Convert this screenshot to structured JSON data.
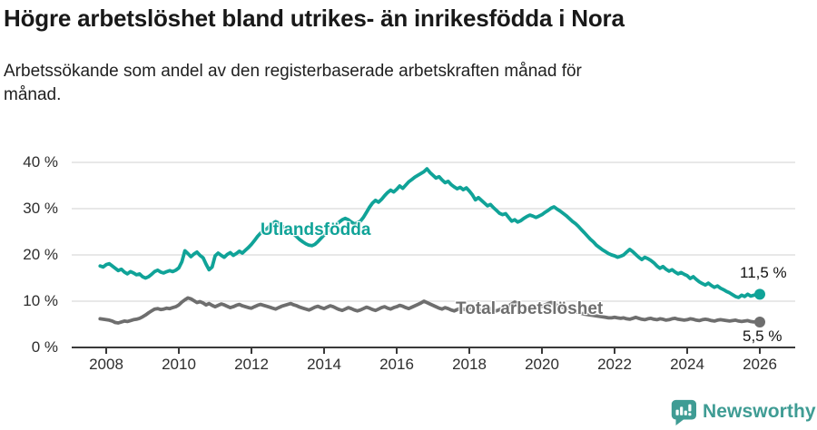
{
  "header": {
    "title": "Högre arbetslöshet bland utrikes- än inrikesfödda i Nora",
    "subtitle": "Arbetssökande som andel av den registerbaserade arbetskraften månad för månad."
  },
  "chart_data": {
    "type": "line",
    "title": "Högre arbetslöshet bland utrikes- än inrikesfödda i Nora",
    "ylabel": "",
    "xlabel": "",
    "grid": "horizontal",
    "ylim": [
      0,
      40
    ],
    "xlim_years": [
      2007.75,
      2026.6
    ],
    "y_axis": {
      "tick_labels": [
        "40 %",
        "30 %",
        "20 %",
        "10 %",
        "0 %"
      ],
      "tick_values": [
        40,
        30,
        20,
        10,
        0
      ]
    },
    "x_axis": {
      "ticks": [
        2008,
        2010,
        2012,
        2014,
        2016,
        2018,
        2020,
        2022,
        2024,
        2026
      ]
    },
    "frequency": "monthly",
    "series": [
      {
        "name": "Utlandsfödda",
        "color": "#10a398",
        "end_label": "11,5 %",
        "end_value": 11.5,
        "start": {
          "year": 2007,
          "month": 11
        },
        "values": [
          17.6,
          17.4,
          17.9,
          18.1,
          17.6,
          17.1,
          16.6,
          16.9,
          16.3,
          15.9,
          16.4,
          16.1,
          15.7,
          15.9,
          15.3,
          15.0,
          15.3,
          15.8,
          16.4,
          16.7,
          16.3,
          16.1,
          16.4,
          16.6,
          16.4,
          16.7,
          17.2,
          18.5,
          20.9,
          20.3,
          19.6,
          20.2,
          20.6,
          19.9,
          19.4,
          18.0,
          16.8,
          17.4,
          19.8,
          20.4,
          19.9,
          19.5,
          20.1,
          20.5,
          19.9,
          20.3,
          20.8,
          20.4,
          21.0,
          21.6,
          22.3,
          23.1,
          24.0,
          24.7,
          25.2,
          25.6,
          26.2,
          26.8,
          27.2,
          26.9,
          26.3,
          25.8,
          25.4,
          25.0,
          24.5,
          23.9,
          23.3,
          22.8,
          22.4,
          22.1,
          22.0,
          22.3,
          22.9,
          23.6,
          24.3,
          25.0,
          25.6,
          26.1,
          26.6,
          27.1,
          27.6,
          27.9,
          27.6,
          27.1,
          26.7,
          26.9,
          27.3,
          28.1,
          29.2,
          30.3,
          31.2,
          31.8,
          31.4,
          32.0,
          32.8,
          33.5,
          34.0,
          33.6,
          34.2,
          34.9,
          34.4,
          35.1,
          35.8,
          36.3,
          36.8,
          37.2,
          37.6,
          38.0,
          38.6,
          37.8,
          37.2,
          36.6,
          36.9,
          36.2,
          35.6,
          35.9,
          35.2,
          34.7,
          34.3,
          34.6,
          34.1,
          34.5,
          33.8,
          33.0,
          31.9,
          32.4,
          31.8,
          31.2,
          30.6,
          30.9,
          30.2,
          29.6,
          29.0,
          28.7,
          28.9,
          28.1,
          27.3,
          27.6,
          27.1,
          27.4,
          27.9,
          28.3,
          28.6,
          28.4,
          28.1,
          28.4,
          28.7,
          29.2,
          29.6,
          30.1,
          30.4,
          29.9,
          29.5,
          29.0,
          28.5,
          27.9,
          27.3,
          26.8,
          26.2,
          25.5,
          24.8,
          24.1,
          23.4,
          22.8,
          22.1,
          21.6,
          21.1,
          20.7,
          20.3,
          20.0,
          19.8,
          19.5,
          19.7,
          20.0,
          20.6,
          21.2,
          20.7,
          20.1,
          19.5,
          19.0,
          19.5,
          19.2,
          18.8,
          18.3,
          17.6,
          17.1,
          17.5,
          16.9,
          16.5,
          16.8,
          16.3,
          15.9,
          16.2,
          15.8,
          15.5,
          14.9,
          15.3,
          14.7,
          14.2,
          13.8,
          13.5,
          13.9,
          13.4,
          13.0,
          13.3,
          12.8,
          12.5,
          12.1,
          11.8,
          11.4,
          11.0,
          10.8,
          11.3,
          11.0,
          11.5,
          11.1,
          11.3,
          11.4,
          11.5
        ]
      },
      {
        "name": "Total arbetslöshet",
        "color": "#6e6e6e",
        "end_label": "5,5 %",
        "end_value": 5.5,
        "start": {
          "year": 2007,
          "month": 11
        },
        "values": [
          6.2,
          6.1,
          6.0,
          5.9,
          5.7,
          5.4,
          5.3,
          5.5,
          5.7,
          5.6,
          5.8,
          6.0,
          6.1,
          6.3,
          6.6,
          7.0,
          7.5,
          7.9,
          8.3,
          8.4,
          8.2,
          8.3,
          8.5,
          8.4,
          8.6,
          8.8,
          9.2,
          9.8,
          10.3,
          10.7,
          10.5,
          10.1,
          9.7,
          9.9,
          9.6,
          9.2,
          9.5,
          9.1,
          8.8,
          9.1,
          9.4,
          9.2,
          8.9,
          8.6,
          8.8,
          9.1,
          9.3,
          9.0,
          8.8,
          8.6,
          8.5,
          8.8,
          9.1,
          9.3,
          9.1,
          8.9,
          8.7,
          8.5,
          8.3,
          8.6,
          8.9,
          9.1,
          9.3,
          9.5,
          9.2,
          9.0,
          8.7,
          8.5,
          8.3,
          8.1,
          8.4,
          8.7,
          8.9,
          8.6,
          8.4,
          8.7,
          9.0,
          8.8,
          8.5,
          8.2,
          8.0,
          8.3,
          8.6,
          8.4,
          8.1,
          7.9,
          8.1,
          8.4,
          8.7,
          8.5,
          8.2,
          8.0,
          8.3,
          8.6,
          8.8,
          8.5,
          8.3,
          8.6,
          8.8,
          9.1,
          8.9,
          8.6,
          8.4,
          8.7,
          9.0,
          9.3,
          9.6,
          10.0,
          9.7,
          9.4,
          9.1,
          8.8,
          8.5,
          8.3,
          8.6,
          8.4,
          8.1,
          7.9,
          8.2,
          8.5,
          8.3,
          8.1,
          8.4,
          8.7,
          8.5,
          8.2,
          8.0,
          8.3,
          8.6,
          8.4,
          8.1,
          7.9,
          8.2,
          8.5,
          8.7,
          9.0,
          9.4,
          9.8,
          9.5,
          9.1,
          8.8,
          8.5,
          8.3,
          8.1,
          8.4,
          8.6,
          8.9,
          9.2,
          9.5,
          9.7,
          9.4,
          9.1,
          8.8,
          8.6,
          8.3,
          8.1,
          7.9,
          7.7,
          7.6,
          7.4,
          7.2,
          7.1,
          7.0,
          6.9,
          6.8,
          6.7,
          6.6,
          6.5,
          6.4,
          6.4,
          6.5,
          6.4,
          6.3,
          6.4,
          6.2,
          6.1,
          6.3,
          6.5,
          6.3,
          6.1,
          6.0,
          6.2,
          6.3,
          6.1,
          6.0,
          6.2,
          6.1,
          5.9,
          6.0,
          6.2,
          6.3,
          6.1,
          6.0,
          5.9,
          6.0,
          6.2,
          6.1,
          5.9,
          5.8,
          6.0,
          6.1,
          6.0,
          5.8,
          5.7,
          5.9,
          6.0,
          5.9,
          5.8,
          5.7,
          5.8,
          5.9,
          5.7,
          5.6,
          5.7,
          5.8,
          5.6,
          5.5,
          5.6,
          5.5
        ]
      }
    ],
    "colors": {
      "gridline": "#d9d9d9",
      "axis": "#3a3a3a",
      "tick_text": "#2e2e2e"
    }
  },
  "footer": {
    "brand": "Newsworthy",
    "brand_color": "#3f9c94",
    "logo_icon": "newsworthy-bubble-chart-icon"
  }
}
